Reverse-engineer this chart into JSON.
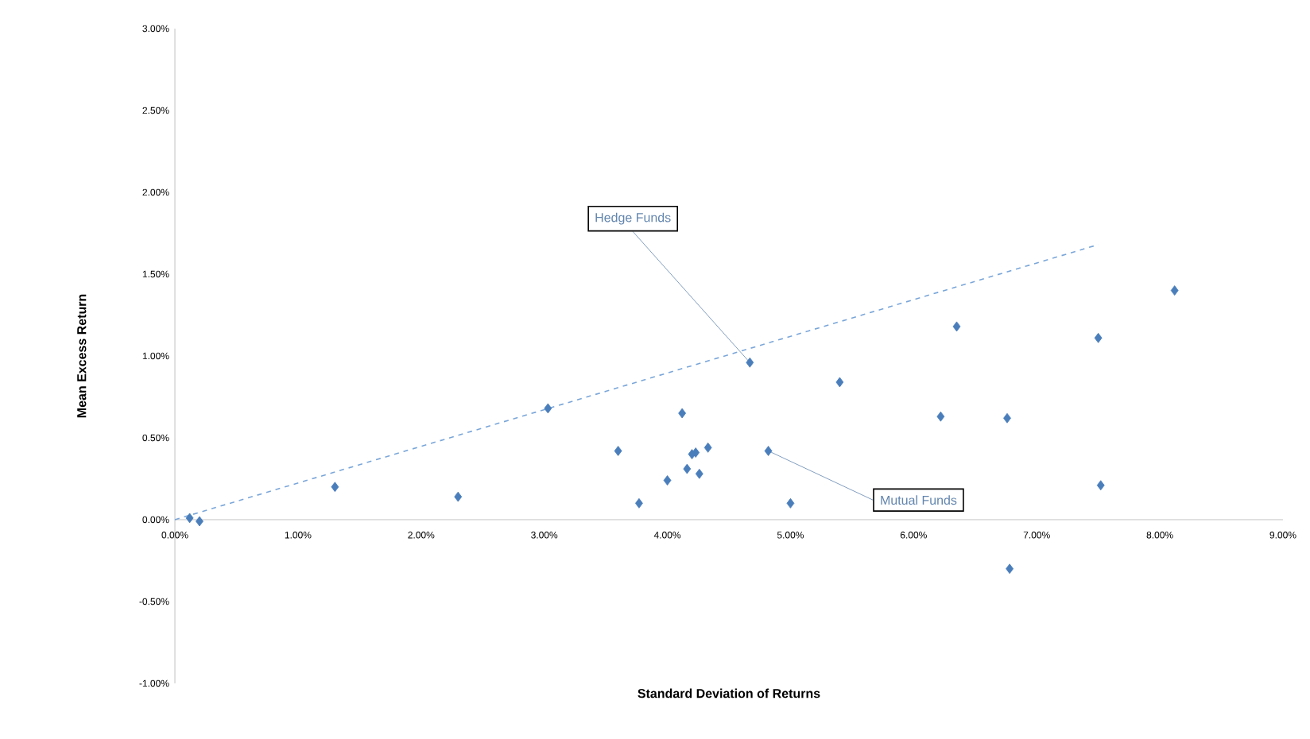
{
  "chart_data": {
    "type": "scatter",
    "xlabel": "Standard Deviation of Returns",
    "ylabel": "Mean Excess Return",
    "xlim": [
      0,
      9
    ],
    "ylim": [
      -1,
      3
    ],
    "xticks": [
      {
        "value": 0,
        "label": "0.00%"
      },
      {
        "value": 1,
        "label": "1.00%"
      },
      {
        "value": 2,
        "label": "2.00%"
      },
      {
        "value": 3,
        "label": "3.00%"
      },
      {
        "value": 4,
        "label": "4.00%"
      },
      {
        "value": 5,
        "label": "5.00%"
      },
      {
        "value": 6,
        "label": "6.00%"
      },
      {
        "value": 7,
        "label": "7.00%"
      },
      {
        "value": 8,
        "label": "8.00%"
      },
      {
        "value": 9,
        "label": "9.00%"
      }
    ],
    "yticks": [
      {
        "value": -1,
        "label": "-1.00%"
      },
      {
        "value": -0.5,
        "label": "-0.50%"
      },
      {
        "value": 0,
        "label": "0.00%"
      },
      {
        "value": 0.5,
        "label": "0.50%"
      },
      {
        "value": 1,
        "label": "1.00%"
      },
      {
        "value": 1.5,
        "label": "1.50%"
      },
      {
        "value": 2,
        "label": "2.00%"
      },
      {
        "value": 2.5,
        "label": "2.50%"
      },
      {
        "value": 3,
        "label": "3.00%"
      }
    ],
    "grid": false,
    "marker": "diamond",
    "series": [
      {
        "color": "#4a7ebb",
        "x": [
          0.12,
          0.2,
          1.3,
          2.3,
          3.03,
          3.6,
          3.77,
          4.0,
          4.12,
          4.16,
          4.2,
          4.23,
          4.26,
          4.33,
          4.67,
          4.82,
          5.0,
          5.4,
          6.22,
          6.35,
          6.76,
          6.78,
          7.5,
          7.52,
          8.12
        ],
        "values": [
          0.01,
          -0.01,
          0.2,
          0.14,
          0.68,
          0.42,
          0.1,
          0.24,
          0.65,
          0.31,
          0.4,
          0.41,
          0.28,
          0.44,
          0.96,
          0.42,
          0.1,
          0.84,
          0.63,
          1.18,
          0.62,
          -0.3,
          1.11,
          0.21,
          1.4
        ]
      },
      {
        "type": "line",
        "color": "#7aa6d9",
        "line_style": "dashed",
        "marker": "none",
        "x": [
          0,
          7.5
        ],
        "values": [
          0,
          1.68
        ]
      }
    ],
    "annotations": [
      {
        "text": "Hedge Funds",
        "x": 4.67,
        "y": 0.96
      },
      {
        "text": "Mutual Funds",
        "x": 4.82,
        "y": 0.42
      }
    ]
  }
}
